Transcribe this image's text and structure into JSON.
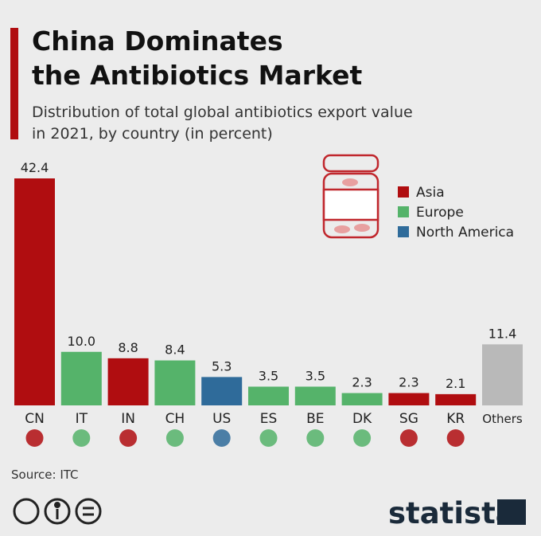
{
  "chart_data": {
    "type": "bar",
    "title": [
      "China Dominates",
      "the Antibiotics Market"
    ],
    "subtitle": [
      "Distribution of total global antibiotics export value",
      "in 2021, by country (in percent)"
    ],
    "categories": [
      "CN",
      "IT",
      "IN",
      "CH",
      "US",
      "ES",
      "BE",
      "DK",
      "SG",
      "KR",
      "Others"
    ],
    "values": [
      42.4,
      10.0,
      8.8,
      8.4,
      5.3,
      3.5,
      3.5,
      2.3,
      2.3,
      2.1,
      11.4
    ],
    "value_labels": [
      "42.4",
      "10.0",
      "8.8",
      "8.4",
      "5.3",
      "3.5",
      "3.5",
      "2.3",
      "2.3",
      "2.1",
      "11.4"
    ],
    "colors": [
      "#b00d10",
      "#55b36a",
      "#b00d10",
      "#55b36a",
      "#2f6b9a",
      "#55b36a",
      "#55b36a",
      "#55b36a",
      "#b00d10",
      "#b00d10",
      "#b9b9b9"
    ],
    "legend": [
      {
        "name": "Asia",
        "color": "#b00d10"
      },
      {
        "name": "Europe",
        "color": "#55b36a"
      },
      {
        "name": "North America",
        "color": "#2f6b9a"
      }
    ],
    "source": "Source: ITC",
    "brand": "statista"
  }
}
